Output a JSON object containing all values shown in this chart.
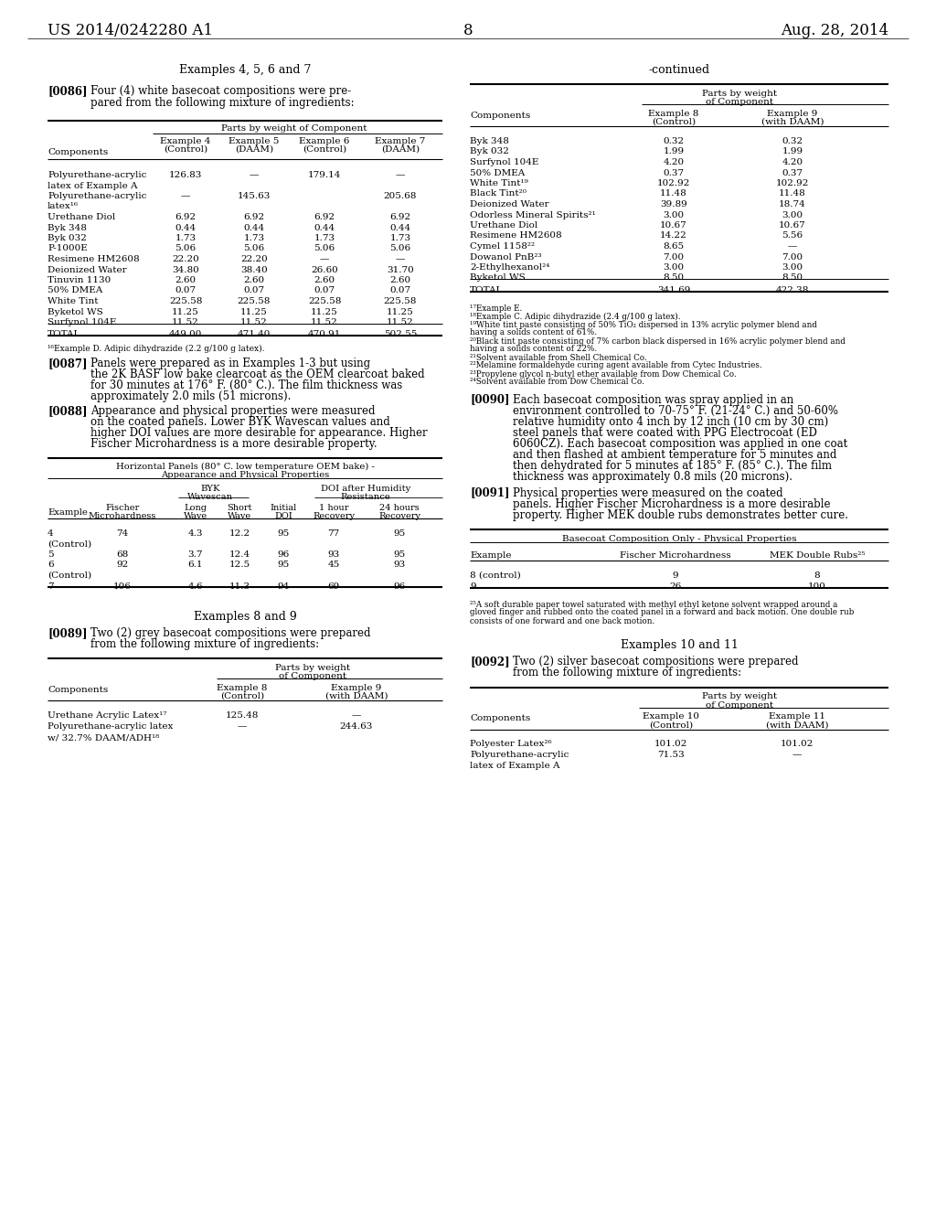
{
  "page_header_left": "US 2014/0242280 A1",
  "page_header_right": "Aug. 28, 2014",
  "page_number": "8",
  "bg_color": "#ffffff",
  "left_col": {
    "section1_title": "Examples 4, 5, 6 and 7",
    "table1_rows": [
      [
        "Polyurethane-acrylic",
        "126.83",
        "—",
        "179.14",
        "—"
      ],
      [
        "latex of Example A",
        "",
        "",
        "",
        ""
      ],
      [
        "Polyurethane-acrylic",
        "—",
        "145.63",
        "",
        "205.68"
      ],
      [
        "latex¹⁶",
        "",
        "",
        "",
        ""
      ],
      [
        "Urethane Diol",
        "6.92",
        "6.92",
        "6.92",
        "6.92"
      ],
      [
        "Byk 348",
        "0.44",
        "0.44",
        "0.44",
        "0.44"
      ],
      [
        "Byk 032",
        "1.73",
        "1.73",
        "1.73",
        "1.73"
      ],
      [
        "P-1000E",
        "5.06",
        "5.06",
        "5.06",
        "5.06"
      ],
      [
        "Resimene HM2608",
        "22.20",
        "22.20",
        "—",
        "—"
      ],
      [
        "Deionized Water",
        "34.80",
        "38.40",
        "26.60",
        "31.70"
      ],
      [
        "Tinuvin 1130",
        "2.60",
        "2.60",
        "2.60",
        "2.60"
      ],
      [
        "50% DMEA",
        "0.07",
        "0.07",
        "0.07",
        "0.07"
      ],
      [
        "White Tint",
        "225.58",
        "225.58",
        "225.58",
        "225.58"
      ],
      [
        "Byketol WS",
        "11.25",
        "11.25",
        "11.25",
        "11.25"
      ],
      [
        "Surfynol 104E",
        "11.52",
        "11.52",
        "11.52",
        "11.52"
      ]
    ],
    "table1_total": [
      "TOTAL",
      "449.00",
      "471.40",
      "470.91",
      "502.55"
    ],
    "table1_footnote": "¹⁶Example D. Adipic dihydrazide (2.2 g/100 g latex).",
    "table2_rows": [
      [
        "4",
        "74",
        "4.3",
        "12.2",
        "95",
        "77",
        "95"
      ],
      [
        "(Control)",
        "",
        "",
        "",
        "",
        "",
        ""
      ],
      [
        "5",
        "68",
        "3.7",
        "12.4",
        "96",
        "93",
        "95"
      ],
      [
        "6",
        "92",
        "6.1",
        "12.5",
        "95",
        "45",
        "93"
      ],
      [
        "(Control)",
        "",
        "",
        "",
        "",
        "",
        ""
      ],
      [
        "7",
        "106",
        "4.6",
        "11.3",
        "94",
        "69",
        "96"
      ]
    ],
    "table3_rows": [
      [
        "Urethane Acrylic Latex¹⁷",
        "125.48",
        "—"
      ],
      [
        "Polyurethane-acrylic latex",
        "—",
        "244.63"
      ],
      [
        "w/ 32.7% DAAM/ADH¹⁸",
        "",
        ""
      ]
    ]
  },
  "right_col": {
    "table_cont_rows": [
      [
        "Byk 348",
        "0.32",
        "0.32"
      ],
      [
        "Byk 032",
        "1.99",
        "1.99"
      ],
      [
        "Surfynol 104E",
        "4.20",
        "4.20"
      ],
      [
        "50% DMEA",
        "0.37",
        "0.37"
      ],
      [
        "White Tint¹⁹",
        "102.92",
        "102.92"
      ],
      [
        "Black Tint²⁰",
        "11.48",
        "11.48"
      ],
      [
        "Deionized Water",
        "39.89",
        "18.74"
      ],
      [
        "Odorless Mineral Spirits²¹",
        "3.00",
        "3.00"
      ],
      [
        "Urethane Diol",
        "10.67",
        "10.67"
      ],
      [
        "Resimene HM2608",
        "14.22",
        "5.56"
      ],
      [
        "Cymel 1158²²",
        "8.65",
        "—"
      ],
      [
        "Dowanol PnB²³",
        "7.00",
        "7.00"
      ],
      [
        "2-Ethylhexanol²⁴",
        "3.00",
        "3.00"
      ],
      [
        "Byketol WS",
        "8.50",
        "8.50"
      ]
    ],
    "table_cont_total": [
      "TOTAL",
      "341.69",
      "422.38"
    ],
    "table_cont_footnotes": [
      "¹⁷Example E.",
      "¹⁸Example C. Adipic dihydrazide (2.4 g/100 g latex).",
      "¹⁹White tint paste consisting of 50% TiO₂ dispersed in 13% acrylic polymer blend and",
      "having a solids content of 61%.",
      "²⁰Black tint paste consisting of 7% carbon black dispersed in 16% acrylic polymer blend and",
      "having a solids content of 22%.",
      "²¹Solvent available from Shell Chemical Co.",
      "²²Melamine formaldehyde curing agent available from Cytec Industries.",
      "²³Propylene glycol n-butyl ether available from Dow Chemical Co.",
      "²⁴Solvent available from Dow Chemical Co."
    ],
    "table4_rows": [
      [
        "8 (control)",
        "9",
        "8"
      ],
      [
        "9",
        "26",
        "100"
      ]
    ],
    "table4_footnote_lines": [
      "²⁵A soft durable paper towel saturated with methyl ethyl ketone solvent wrapped around a",
      "gloved finger and rubbed onto the coated panel in a forward and back motion. One double rub",
      "consists of one forward and one back motion."
    ],
    "table5_rows": [
      [
        "Polyester Latex²⁶",
        "101.02",
        "101.02"
      ],
      [
        "Polyurethane-acrylic",
        "71.53",
        "—"
      ],
      [
        "latex of Example A",
        "",
        ""
      ]
    ]
  }
}
